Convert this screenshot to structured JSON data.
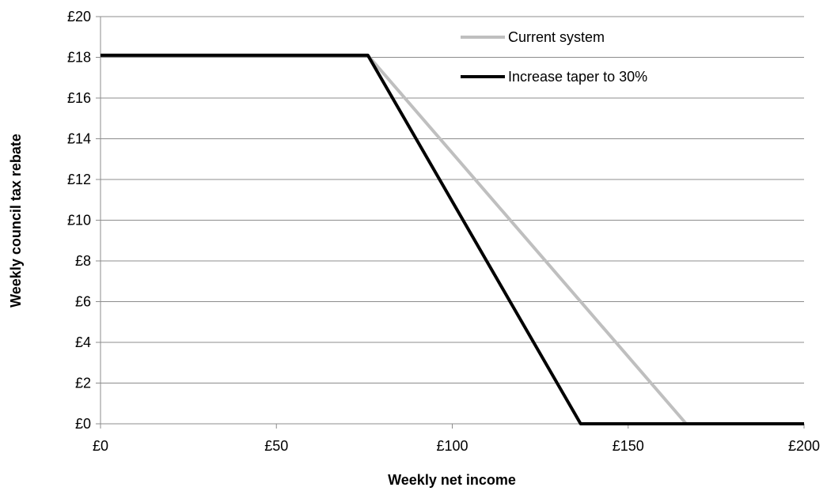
{
  "chart_data": {
    "type": "line",
    "title": "",
    "xlabel": "Weekly net income",
    "ylabel": "Weekly council tax rebate",
    "xlim": [
      0,
      200
    ],
    "ylim": [
      0,
      20
    ],
    "x_ticks": [
      0,
      50,
      100,
      150,
      200
    ],
    "x_tick_labels": [
      "£0",
      "£50",
      "£100",
      "£150",
      "£200"
    ],
    "y_ticks": [
      0,
      2,
      4,
      6,
      8,
      10,
      12,
      14,
      16,
      18,
      20
    ],
    "y_tick_labels": [
      "£0",
      "£2",
      "£4",
      "£6",
      "£8",
      "£10",
      "£12",
      "£14",
      "£16",
      "£18",
      "£20"
    ],
    "grid": "horizontal",
    "legend_position": "top-right",
    "series": [
      {
        "name": "Current system",
        "color": "#bfbfbf",
        "points": [
          [
            0,
            18.1
          ],
          [
            76,
            18.1
          ],
          [
            166.5,
            0
          ],
          [
            200,
            0
          ]
        ]
      },
      {
        "name": "Increase taper to 30%",
        "color": "#000000",
        "points": [
          [
            0,
            18.1
          ],
          [
            76,
            18.1
          ],
          [
            136.5,
            0
          ],
          [
            200,
            0
          ]
        ]
      }
    ]
  }
}
